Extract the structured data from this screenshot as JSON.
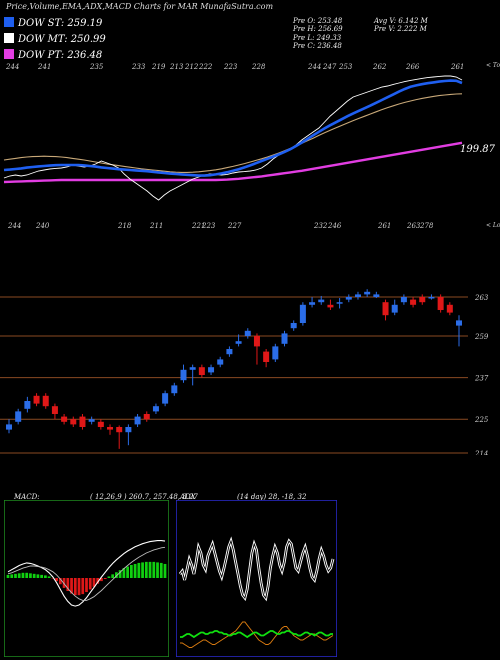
{
  "header": {
    "title": "Price,Volume,EMA,ADX,MACD Charts for MAR MunafaSutra.com"
  },
  "legend": [
    {
      "label": "DOW ST: 259.19",
      "color": "#1f5ff0"
    },
    {
      "label": "DOW MT: 250.99",
      "color": "#ffffff"
    },
    {
      "label": "DOW PT: 236.48",
      "color": "#e23de2"
    }
  ],
  "stats": {
    "col1": [
      "Pre O: 253.48",
      "Pre H: 256.69",
      "Pre L: 249.33",
      "Pre C: 236.48"
    ],
    "col2": [
      "Avg V: 6.142 M",
      "Pre V: 2.222 M"
    ]
  },
  "chart_data": [
    {
      "type": "line",
      "title": "",
      "series": [
        {
          "name": "DOW ST",
          "color": "#1f5ff0",
          "values": [
            166.0,
            166.2,
            166.5,
            166.8,
            167.2,
            167.5,
            167.8,
            168.0,
            168.2,
            168.4,
            168.5,
            168.5,
            168.5,
            168.5,
            168.3,
            168.0,
            167.7,
            167.3,
            167.0,
            166.7,
            166.4,
            166.2,
            166.0,
            165.8,
            165.6,
            165.4,
            165.1,
            164.8,
            164.5,
            164.2,
            164.0,
            163.8,
            163.6,
            163.4,
            163.2,
            163.2,
            163.4,
            163.8,
            164.3,
            164.9,
            165.6,
            166.4,
            167.3,
            168.3,
            169.4,
            170.5,
            171.6,
            172.7,
            173.8,
            175.0,
            176.4,
            178.0,
            179.7,
            181.5,
            183.3,
            185.1,
            186.8,
            188.4,
            189.9,
            191.4,
            192.9,
            194.3,
            195.6,
            196.9,
            198.2,
            199.6,
            201.0,
            202.4,
            203.8,
            205.2,
            206.5,
            207.6,
            208.3,
            208.9,
            209.4,
            209.8,
            210.2,
            210.5,
            210.7,
            210.6,
            209.5
          ]
        },
        {
          "name": "EMA",
          "color": "#c8a878",
          "values": [
            171.0,
            171.4,
            171.8,
            172.2,
            172.5,
            172.7,
            172.8,
            172.9,
            172.8,
            172.7,
            172.5,
            172.2,
            171.8,
            171.4,
            171.0,
            170.5,
            170.0,
            169.5,
            169.0,
            168.6,
            168.2,
            167.8,
            167.4,
            167.0,
            166.6,
            166.3,
            166.0,
            165.7,
            165.4,
            165.1,
            164.9,
            164.8,
            164.8,
            164.9,
            165.1,
            165.4,
            165.7,
            166.1,
            166.6,
            167.2,
            167.8,
            168.5,
            169.2,
            170.0,
            170.8,
            171.6,
            172.5,
            173.5,
            174.5,
            175.6,
            176.8,
            178.0,
            179.3,
            180.6,
            181.9,
            183.3,
            184.6,
            185.9,
            187.1,
            188.3,
            189.5,
            190.7,
            191.8,
            192.9,
            194.0,
            195.1,
            196.2,
            197.2,
            198.1,
            199.0,
            199.8,
            200.5,
            201.2,
            201.8,
            202.3,
            202.8,
            203.2,
            203.5,
            203.8,
            204.0,
            204.1
          ]
        },
        {
          "name": "DOW MT",
          "color": "#ffffff",
          "values": [
            162.0,
            163.0,
            163.5,
            163.0,
            163.5,
            164.5,
            165.5,
            166.0,
            166.5,
            166.8,
            167.0,
            167.5,
            168.5,
            168.0,
            167.5,
            168.0,
            169.0,
            170.5,
            169.5,
            168.5,
            167.0,
            164.0,
            161.5,
            159.5,
            157.5,
            155.5,
            153.0,
            151.0,
            153.5,
            155.5,
            157.0,
            158.5,
            160.0,
            161.5,
            162.5,
            163.5,
            164.0,
            163.8,
            163.5,
            163.8,
            164.5,
            165.0,
            165.2,
            165.5,
            166.0,
            167.0,
            169.0,
            171.5,
            173.5,
            175.0,
            176.5,
            178.5,
            181.0,
            183.0,
            185.0,
            187.0,
            190.0,
            193.0,
            195.5,
            198.0,
            200.5,
            202.5,
            203.5,
            204.5,
            205.5,
            206.5,
            207.5,
            208.0,
            208.8,
            209.5,
            210.2,
            210.8,
            211.3,
            211.8,
            212.2,
            212.5,
            212.8,
            213.0,
            213.0,
            212.5,
            211.0
          ]
        },
        {
          "name": "DOW PT",
          "color": "#e23de2",
          "values": [
            160.0,
            160.1,
            160.2,
            160.3,
            160.4,
            160.5,
            160.6,
            160.7,
            160.8,
            160.9,
            161.0,
            161.0,
            161.0,
            161.0,
            161.0,
            161.0,
            161.0,
            161.0,
            161.0,
            161.0,
            161.0,
            161.0,
            161.0,
            161.0,
            161.0,
            161.0,
            161.0,
            161.0,
            161.0,
            161.0,
            161.0,
            161.0,
            161.0,
            161.0,
            161.0,
            161.0,
            161.0,
            161.0,
            161.1,
            161.2,
            161.4,
            161.6,
            161.9,
            162.2,
            162.5,
            162.8,
            163.2,
            163.6,
            164.0,
            164.4,
            164.8,
            165.2,
            165.6,
            166.1,
            166.6,
            167.1,
            167.6,
            168.1,
            168.6,
            169.1,
            169.6,
            170.1,
            170.6,
            171.1,
            171.6,
            172.1,
            172.6,
            173.1,
            173.6,
            174.1,
            174.6,
            175.1,
            175.6,
            176.1,
            176.6,
            177.1,
            177.6,
            178.1,
            178.6,
            179.1,
            179.6
          ]
        }
      ],
      "last_label": "199.87",
      "top_ticks": [
        "244",
        "241",
        "235",
        "233",
        "219",
        "213",
        "212",
        "222",
        "223",
        "228",
        "244",
        "247",
        "253",
        "262",
        "266",
        "261"
      ],
      "bottom_ticks": [
        "244",
        "240",
        "218",
        "211",
        "221",
        "223",
        "227",
        "232",
        "246",
        "261",
        "263",
        "278"
      ],
      "right_label_top": "< Tops",
      "right_label_bottom": "< Lows"
    },
    {
      "type": "candlestick",
      "candles": [
        {
          "o": 247.5,
          "c": 248.5,
          "h": 249.5,
          "l": 246.8
        },
        {
          "o": 249.0,
          "c": 251.0,
          "h": 251.5,
          "l": 248.5
        },
        {
          "o": 251.5,
          "c": 253.0,
          "h": 253.8,
          "l": 250.8
        },
        {
          "o": 254.0,
          "c": 252.5,
          "h": 254.5,
          "l": 252.0
        },
        {
          "o": 254.0,
          "c": 252.0,
          "h": 254.5,
          "l": 251.5
        },
        {
          "o": 252.0,
          "c": 250.5,
          "h": 252.5,
          "l": 249.5
        },
        {
          "o": 250.0,
          "c": 249.0,
          "h": 250.5,
          "l": 248.5
        },
        {
          "o": 249.5,
          "c": 248.5,
          "h": 250.0,
          "l": 248.0
        },
        {
          "o": 250.0,
          "c": 248.0,
          "h": 250.5,
          "l": 247.5
        },
        {
          "o": 249.0,
          "c": 249.5,
          "h": 250.0,
          "l": 248.5
        },
        {
          "o": 249.0,
          "c": 248.0,
          "h": 249.5,
          "l": 247.5
        },
        {
          "o": 248.0,
          "c": 247.5,
          "h": 248.5,
          "l": 246.5
        },
        {
          "o": 248.0,
          "c": 247.0,
          "h": 248.3,
          "l": 243.8
        },
        {
          "o": 247.0,
          "c": 248.0,
          "h": 248.5,
          "l": 244.5
        },
        {
          "o": 248.5,
          "c": 250.0,
          "h": 250.5,
          "l": 248.0
        },
        {
          "o": 250.5,
          "c": 249.5,
          "h": 251.0,
          "l": 249.0
        },
        {
          "o": 251.0,
          "c": 252.0,
          "h": 252.5,
          "l": 250.5
        },
        {
          "o": 252.5,
          "c": 254.5,
          "h": 255.0,
          "l": 252.0
        },
        {
          "o": 254.5,
          "c": 256.0,
          "h": 256.5,
          "l": 254.0
        },
        {
          "o": 257.0,
          "c": 259.0,
          "h": 260.0,
          "l": 256.5
        },
        {
          "o": 259.0,
          "c": 259.5,
          "h": 260.0,
          "l": 256.0
        },
        {
          "o": 259.5,
          "c": 258.0,
          "h": 260.0,
          "l": 257.5
        },
        {
          "o": 258.5,
          "c": 259.5,
          "h": 260.0,
          "l": 258.0
        },
        {
          "o": 260.0,
          "c": 261.0,
          "h": 261.5,
          "l": 259.5
        },
        {
          "o": 262.0,
          "c": 263.0,
          "h": 263.5,
          "l": 261.5
        },
        {
          "o": 264.0,
          "c": 264.5,
          "h": 265.8,
          "l": 263.5
        },
        {
          "o": 265.5,
          "c": 266.5,
          "h": 267.0,
          "l": 265.0
        },
        {
          "o": 265.5,
          "c": 263.5,
          "h": 266.0,
          "l": 260.0
        },
        {
          "o": 262.5,
          "c": 260.5,
          "h": 263.0,
          "l": 259.5
        },
        {
          "o": 261.0,
          "c": 263.5,
          "h": 264.0,
          "l": 260.5
        },
        {
          "o": 264.0,
          "c": 266.0,
          "h": 266.5,
          "l": 263.5
        },
        {
          "o": 267.0,
          "c": 268.0,
          "h": 268.5,
          "l": 266.5
        },
        {
          "o": 268.0,
          "c": 271.5,
          "h": 272.0,
          "l": 267.5
        },
        {
          "o": 271.5,
          "c": 272.0,
          "h": 273.0,
          "l": 271.0
        },
        {
          "o": 272.0,
          "c": 272.5,
          "h": 273.2,
          "l": 271.5
        },
        {
          "o": 271.5,
          "c": 271.0,
          "h": 272.5,
          "l": 270.5
        },
        {
          "o": 272.0,
          "c": 272.0,
          "h": 272.8,
          "l": 270.8
        },
        {
          "o": 272.5,
          "c": 273.0,
          "h": 273.5,
          "l": 272.0
        },
        {
          "o": 273.0,
          "c": 273.5,
          "h": 274.0,
          "l": 272.5
        },
        {
          "o": 273.5,
          "c": 274.0,
          "h": 274.5,
          "l": 273.0
        },
        {
          "o": 273.0,
          "c": 273.5,
          "h": 274.0,
          "l": 272.8
        },
        {
          "o": 272.0,
          "c": 269.5,
          "h": 272.5,
          "l": 268.5
        },
        {
          "o": 270.0,
          "c": 271.5,
          "h": 272.5,
          "l": 269.5
        },
        {
          "o": 272.0,
          "c": 273.0,
          "h": 273.5,
          "l": 271.5
        },
        {
          "o": 272.5,
          "c": 271.5,
          "h": 273.0,
          "l": 271.0
        },
        {
          "o": 273.0,
          "c": 272.0,
          "h": 273.5,
          "l": 271.5
        },
        {
          "o": 273.0,
          "c": 273.0,
          "h": 273.5,
          "l": 272.5
        },
        {
          "o": 273.0,
          "c": 270.5,
          "h": 273.5,
          "l": 270.0
        },
        {
          "o": 271.5,
          "c": 270.0,
          "h": 272.0,
          "l": 269.5
        },
        {
          "o": 267.5,
          "c": 268.5,
          "h": 269.5,
          "l": 263.5
        }
      ],
      "hlines": [
        {
          "label": "263",
          "value": 273.0
        },
        {
          "label": "259",
          "value": 265.5
        },
        {
          "label": "237",
          "value": 257.5
        },
        {
          "label": "225",
          "value": 249.5
        },
        {
          "label": "214",
          "value": 243.0
        }
      ],
      "ylim": [
        241,
        283
      ]
    },
    {
      "type": "macd",
      "label": "MACD:",
      "params": "( 12,26,9 ) 260.7, 257.48, 3.27",
      "histogram": [
        0.6,
        0.7,
        0.8,
        0.9,
        1.0,
        1.0,
        0.9,
        0.8,
        0.7,
        0.6,
        0.5,
        0.3,
        -0.1,
        -0.6,
        -1.2,
        -1.9,
        -2.5,
        -3.0,
        -3.3,
        -3.3,
        -3.1,
        -2.7,
        -2.2,
        -1.7,
        -1.1,
        -0.6,
        -0.2,
        0.3,
        0.7,
        1.1,
        1.5,
        1.9,
        2.2,
        2.5,
        2.7,
        2.9,
        3.0,
        3.1,
        3.1,
        3.1,
        3.0,
        2.9,
        2.7
      ],
      "macd_line": [
        1.2,
        1.6,
        2.0,
        2.4,
        2.7,
        2.9,
        2.8,
        2.6,
        2.3,
        2.0,
        1.6,
        1.0,
        0.2,
        -0.9,
        -2.2,
        -3.5,
        -4.5,
        -5.2,
        -5.4,
        -5.2,
        -4.6,
        -3.8,
        -2.8,
        -1.8,
        -0.8,
        0.2,
        1.1,
        2.0,
        2.8,
        3.5,
        4.1,
        4.7,
        5.2,
        5.6,
        6.0,
        6.3,
        6.6,
        6.8,
        7.0,
        7.1,
        7.2,
        7.2,
        7.1
      ],
      "signal_line": [
        0.8,
        1.0,
        1.3,
        1.6,
        1.9,
        2.1,
        2.3,
        2.3,
        2.2,
        2.1,
        1.9,
        1.6,
        1.2,
        0.6,
        -0.2,
        -1.1,
        -2.0,
        -2.8,
        -3.5,
        -4.0,
        -4.3,
        -4.3,
        -4.0,
        -3.6,
        -3.0,
        -2.4,
        -1.7,
        -1.0,
        -0.3,
        0.4,
        1.1,
        1.8,
        2.4,
        3.0,
        3.5,
        4.0,
        4.4,
        4.8,
        5.1,
        5.4,
        5.6,
        5.8,
        5.9
      ]
    },
    {
      "type": "adx",
      "label": "ADX",
      "params": "(14 day) 28, -18, 32",
      "adx": [
        52,
        54,
        48,
        55,
        62,
        58,
        52,
        60,
        70,
        66,
        58,
        55,
        64,
        68,
        72,
        66,
        60,
        54,
        50,
        56,
        63,
        70,
        74,
        68,
        60,
        52,
        44,
        38,
        36,
        42,
        54,
        66,
        72,
        68,
        56,
        46,
        38,
        36,
        44,
        56,
        64,
        70,
        66,
        58,
        54,
        60,
        70,
        74,
        72,
        64,
        56,
        54,
        60,
        66,
        70,
        64,
        56,
        50,
        48,
        54,
        62,
        68,
        64,
        58,
        54,
        56,
        62
      ],
      "di_plus": [
        10,
        10,
        11,
        12,
        12,
        11,
        10,
        11,
        12,
        13,
        13,
        12,
        12,
        13,
        13,
        14,
        14,
        13,
        13,
        12,
        12,
        11,
        11,
        12,
        12,
        13,
        13,
        12,
        11,
        10,
        11,
        12,
        13,
        13,
        12,
        11,
        11,
        12,
        13,
        14,
        14,
        13,
        12,
        12,
        13,
        13,
        14,
        14,
        13,
        12,
        12,
        11,
        11,
        12,
        13,
        13,
        12,
        12,
        11,
        12,
        13,
        13,
        12,
        11,
        11,
        12,
        12
      ],
      "di_minus": [
        6,
        6,
        5,
        4,
        3,
        3,
        4,
        5,
        6,
        7,
        8,
        8,
        7,
        6,
        5,
        5,
        6,
        7,
        8,
        9,
        10,
        11,
        12,
        13,
        14,
        16,
        18,
        20,
        20,
        18,
        16,
        14,
        12,
        10,
        8,
        7,
        6,
        5,
        5,
        6,
        8,
        10,
        12,
        14,
        16,
        17,
        17,
        15,
        13,
        11,
        10,
        9,
        8,
        8,
        9,
        10,
        11,
        12,
        12,
        11,
        10,
        9,
        8,
        8,
        9,
        10,
        11
      ]
    }
  ]
}
